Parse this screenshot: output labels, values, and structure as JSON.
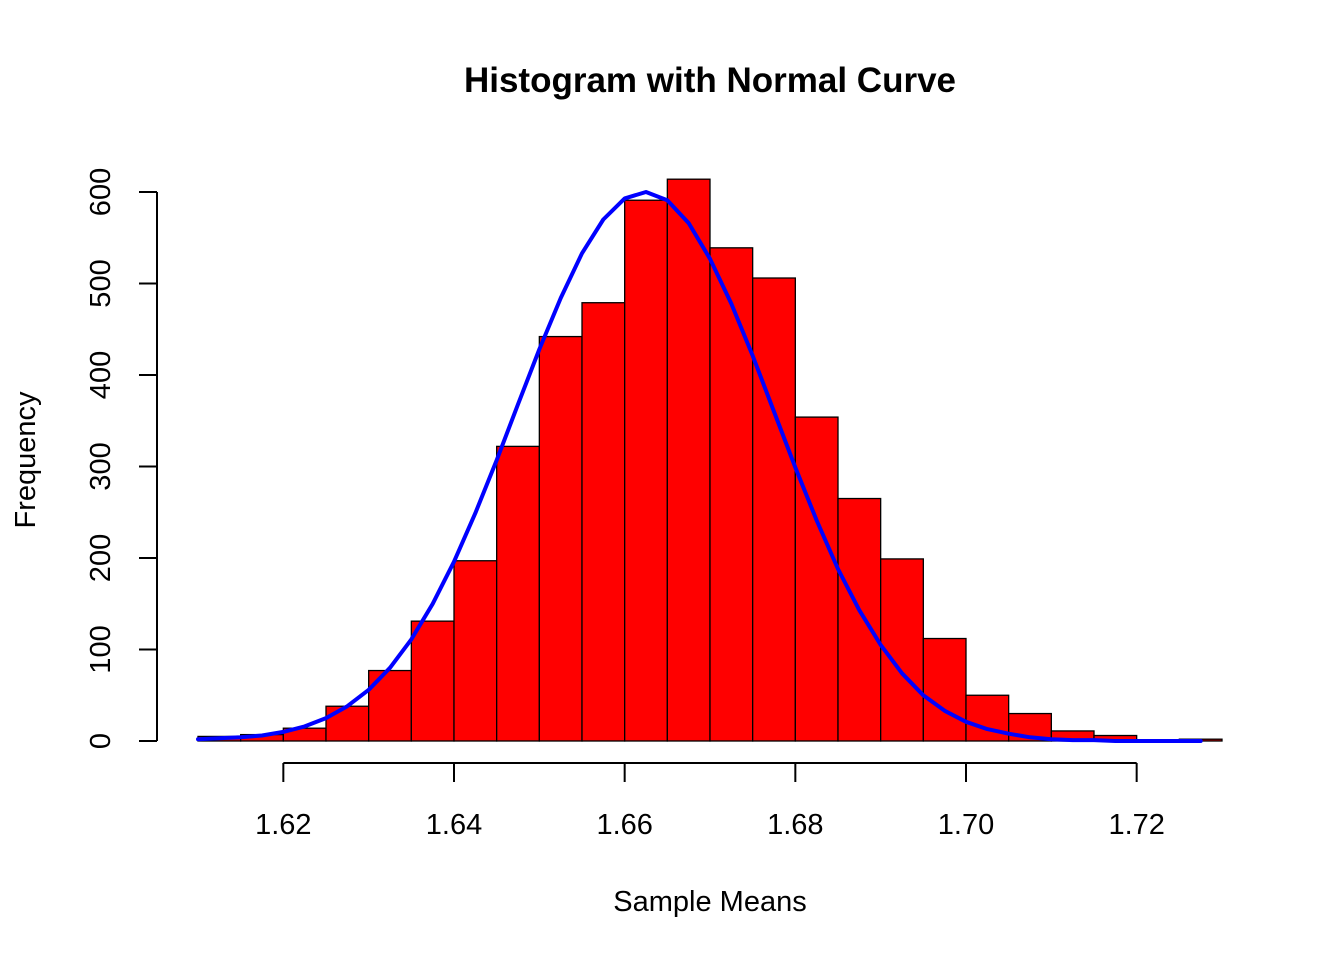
{
  "chart_data": {
    "type": "bar",
    "subtype": "histogram-with-density-curve",
    "title": "Histogram with Normal Curve",
    "xlabel": "Sample Means",
    "ylabel": "Frequency",
    "xlim": [
      1.61,
      1.73
    ],
    "ylim": [
      0,
      600
    ],
    "x_ticks": [
      "1.62",
      "1.64",
      "1.66",
      "1.68",
      "1.70",
      "1.72"
    ],
    "x_tick_values": [
      1.62,
      1.64,
      1.66,
      1.68,
      1.7,
      1.72
    ],
    "y_ticks": [
      "0",
      "100",
      "200",
      "300",
      "400",
      "500",
      "600"
    ],
    "y_tick_values": [
      0,
      100,
      200,
      300,
      400,
      500,
      600
    ],
    "bin_width": 0.005,
    "bins": [
      {
        "start": 1.61,
        "end": 1.615,
        "count": 5
      },
      {
        "start": 1.615,
        "end": 1.62,
        "count": 7
      },
      {
        "start": 1.62,
        "end": 1.625,
        "count": 14
      },
      {
        "start": 1.625,
        "end": 1.63,
        "count": 38
      },
      {
        "start": 1.63,
        "end": 1.635,
        "count": 77
      },
      {
        "start": 1.635,
        "end": 1.64,
        "count": 131
      },
      {
        "start": 1.64,
        "end": 1.645,
        "count": 197
      },
      {
        "start": 1.645,
        "end": 1.65,
        "count": 322
      },
      {
        "start": 1.65,
        "end": 1.655,
        "count": 442
      },
      {
        "start": 1.655,
        "end": 1.66,
        "count": 479
      },
      {
        "start": 1.66,
        "end": 1.665,
        "count": 591
      },
      {
        "start": 1.665,
        "end": 1.67,
        "count": 614
      },
      {
        "start": 1.67,
        "end": 1.675,
        "count": 539
      },
      {
        "start": 1.675,
        "end": 1.68,
        "count": 506
      },
      {
        "start": 1.68,
        "end": 1.685,
        "count": 354
      },
      {
        "start": 1.685,
        "end": 1.69,
        "count": 265
      },
      {
        "start": 1.69,
        "end": 1.695,
        "count": 199
      },
      {
        "start": 1.695,
        "end": 1.7,
        "count": 112
      },
      {
        "start": 1.7,
        "end": 1.705,
        "count": 50
      },
      {
        "start": 1.705,
        "end": 1.71,
        "count": 30
      },
      {
        "start": 1.71,
        "end": 1.715,
        "count": 11
      },
      {
        "start": 1.715,
        "end": 1.72,
        "count": 6
      },
      {
        "start": 1.72,
        "end": 1.725,
        "count": 1
      },
      {
        "start": 1.725,
        "end": 1.73,
        "count": 2
      }
    ],
    "curve": {
      "type": "line",
      "x": [
        1.61,
        1.6125,
        1.615,
        1.6175,
        1.62,
        1.6225,
        1.625,
        1.6275,
        1.63,
        1.6325,
        1.635,
        1.6375,
        1.64,
        1.6425,
        1.645,
        1.6475,
        1.65,
        1.6525,
        1.655,
        1.6575,
        1.66,
        1.6625,
        1.665,
        1.6675,
        1.67,
        1.6725,
        1.675,
        1.6775,
        1.68,
        1.6825,
        1.685,
        1.6875,
        1.69,
        1.6925,
        1.695,
        1.6975,
        1.7,
        1.7025,
        1.705,
        1.7075,
        1.71,
        1.7125,
        1.715,
        1.7175,
        1.72,
        1.7225,
        1.725,
        1.7275
      ],
      "y": [
        2,
        3,
        4,
        6,
        10,
        16,
        25,
        38,
        56,
        80,
        111,
        150,
        196,
        249,
        307,
        368,
        428,
        484,
        533,
        570,
        593,
        600,
        591,
        566,
        527,
        478,
        421,
        360,
        299,
        241,
        188,
        143,
        105,
        74,
        50,
        33,
        21,
        13,
        8,
        4,
        2,
        1,
        1,
        0,
        0,
        0,
        0,
        0
      ]
    },
    "colors": {
      "bar_fill": "#ff0000",
      "bar_border": "#000000",
      "curve": "#0000ff",
      "axis": "#000000"
    },
    "grid": false,
    "legend": "none"
  }
}
